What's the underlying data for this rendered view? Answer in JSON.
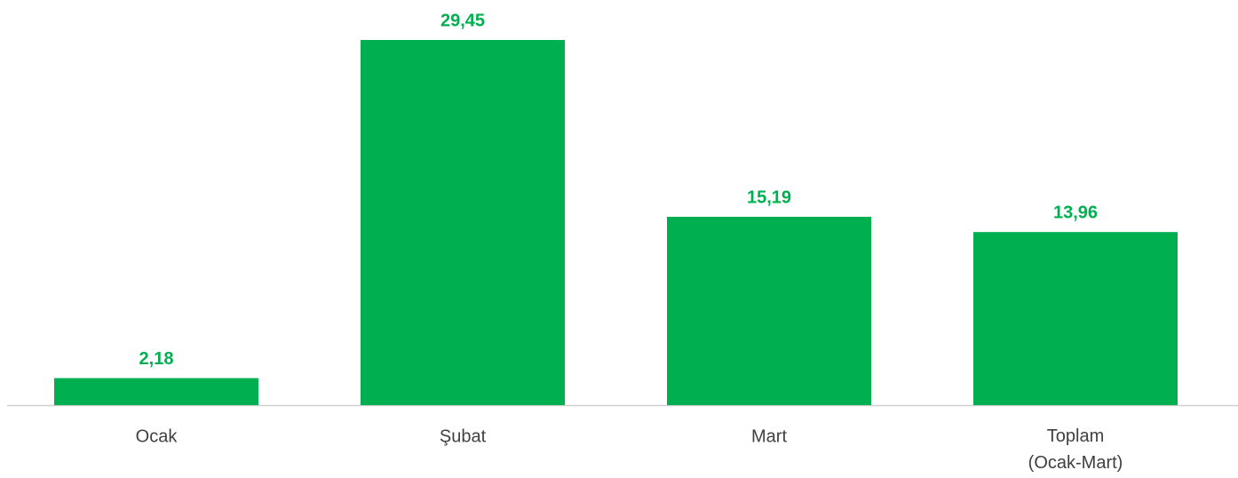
{
  "chart_data": {
    "type": "bar",
    "categories": [
      "Ocak",
      "Şubat",
      "Mart",
      "Toplam (Ocak-Mart)"
    ],
    "values": [
      2.18,
      29.45,
      15.19,
      13.96
    ],
    "value_labels": [
      "2,18",
      "29,45",
      "15,19",
      "13,96"
    ],
    "color": "#00b050"
  }
}
